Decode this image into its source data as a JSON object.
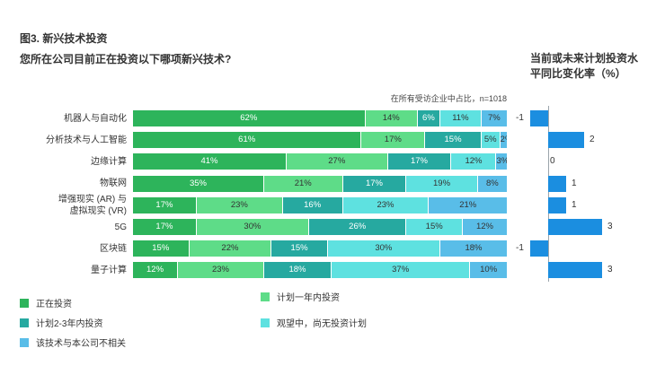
{
  "figure": {
    "title": "图3. 新兴技术投资",
    "question": "您所在公司目前正在投资以下哪项新兴技术?",
    "note": "在所有受访企业中占比，n=1018",
    "right_title_line1": "当前或未来计划投资水",
    "right_title_line2": "平同比变化率（%）"
  },
  "legend": [
    {
      "label": "正在投资",
      "color": "#2db45b"
    },
    {
      "label": "计划一年内投资",
      "color": "#5edc88"
    },
    {
      "label": "计划2-3年内投资",
      "color": "#26a9a0"
    },
    {
      "label": "观望中，尚无投资计划",
      "color": "#5ee1e0"
    },
    {
      "label": "该技术与本公司不相关",
      "color": "#59bde8"
    }
  ],
  "chart_data": [
    {
      "type": "bar",
      "orientation": "horizontal",
      "stacked": true,
      "unit": "%",
      "categories": [
        "机器人与自动化",
        "分析技术与人工智能",
        "边缘计算",
        "物联网",
        "增强现实 (AR) 与虚拟现实 (VR)",
        "5G",
        "区块链",
        "量子计算"
      ],
      "category_lines": [
        [
          "机器人与自动化"
        ],
        [
          "分析技术与人工智能"
        ],
        [
          "边缘计算"
        ],
        [
          "物联网"
        ],
        [
          "增强现实 (AR) 与",
          "虚拟现实 (VR)"
        ],
        [
          "5G"
        ],
        [
          "区块链"
        ],
        [
          "量子计算"
        ]
      ],
      "series": [
        {
          "name": "正在投资",
          "color": "#2db45b",
          "text": "dark",
          "values": [
            62,
            61,
            41,
            35,
            17,
            17,
            15,
            12
          ],
          "labels": [
            "62%",
            "61%",
            "41%",
            "35%",
            "17%",
            "17%",
            "15%",
            "12%"
          ]
        },
        {
          "name": "计划一年内投资",
          "color": "#5edc88",
          "text": "light",
          "values": [
            14,
            17,
            27,
            21,
            23,
            30,
            22,
            23
          ],
          "labels": [
            "14%",
            "17%",
            "27%",
            "21%",
            "23%",
            "30%",
            "22%",
            "23%"
          ]
        },
        {
          "name": "计划2-3年内投资",
          "color": "#26a9a0",
          "text": "dark",
          "values": [
            6,
            15,
            17,
            17,
            16,
            26,
            15,
            18
          ],
          "labels": [
            "6%",
            "15%",
            "17%",
            "17%",
            "16%",
            "26%",
            "15%",
            "18%"
          ]
        },
        {
          "name": "观望中，尚无投资计划",
          "color": "#5ee1e0",
          "text": "light",
          "values": [
            11,
            5,
            12,
            19,
            23,
            15,
            30,
            37
          ],
          "labels": [
            "11%",
            "5%",
            "12%",
            "19%",
            "23%",
            "15%",
            "30%",
            "37%"
          ]
        },
        {
          "name": "该技术与本公司不相关",
          "color": "#59bde8",
          "text": "light",
          "values": [
            7,
            2,
            3,
            8,
            21,
            12,
            18,
            10
          ],
          "labels": [
            "7%",
            "2%",
            "3%",
            "8%",
            "21%",
            "12%",
            "18%",
            "10%"
          ]
        }
      ],
      "xlim": [
        0,
        100
      ]
    },
    {
      "type": "bar",
      "orientation": "horizontal",
      "title": "当前或未来计划投资水平同比变化率（%）",
      "categories": [
        "机器人与自动化",
        "分析技术与人工智能",
        "边缘计算",
        "物联网",
        "增强现实 (AR) 与虚拟现实 (VR)",
        "5G",
        "区块链",
        "量子计算"
      ],
      "values": [
        -1,
        2,
        0,
        1,
        1,
        3,
        -1,
        3
      ],
      "labels": [
        "-1",
        "2",
        "0",
        "1",
        "1",
        "3",
        "-1",
        "3"
      ],
      "color": "#1b8ee0"
    }
  ]
}
